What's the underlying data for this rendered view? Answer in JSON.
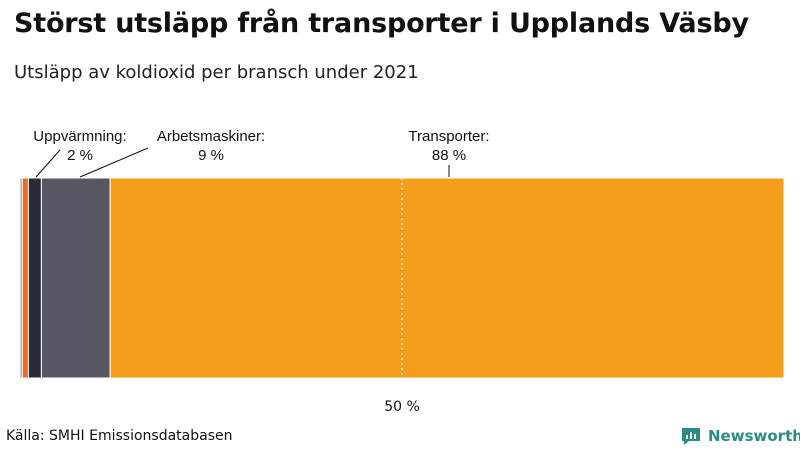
{
  "title": "Störst utsläpp från transporter i Upplands Väsby",
  "subtitle": "Utsläpp av koldioxid per bransch under 2021",
  "source": "Källa: SMHI Emissionsdatabasen",
  "brand": "Newsworthy",
  "colors": {
    "brand": "#2a8c86"
  },
  "chart_data": {
    "type": "bar",
    "stacked": true,
    "orientation": "horizontal",
    "unit": "%",
    "xlim": [
      0,
      100
    ],
    "reference_line": {
      "value": 50,
      "label": "50 %"
    },
    "segments": [
      {
        "name": "",
        "value": 0.3,
        "color": "#9aa0a6"
      },
      {
        "name": "",
        "value": 0.8,
        "color": "#f06a25"
      },
      {
        "name": "Uppvärmning:",
        "value": 1.7,
        "label": "2 %",
        "color": "#2b2b35"
      },
      {
        "name": "Arbetsmaskiner:",
        "value": 9.0,
        "label": "9 %",
        "color": "#575764"
      },
      {
        "name": "Transporter:",
        "value": 88.2,
        "label": "88 %",
        "color": "#f59e1b"
      }
    ]
  }
}
